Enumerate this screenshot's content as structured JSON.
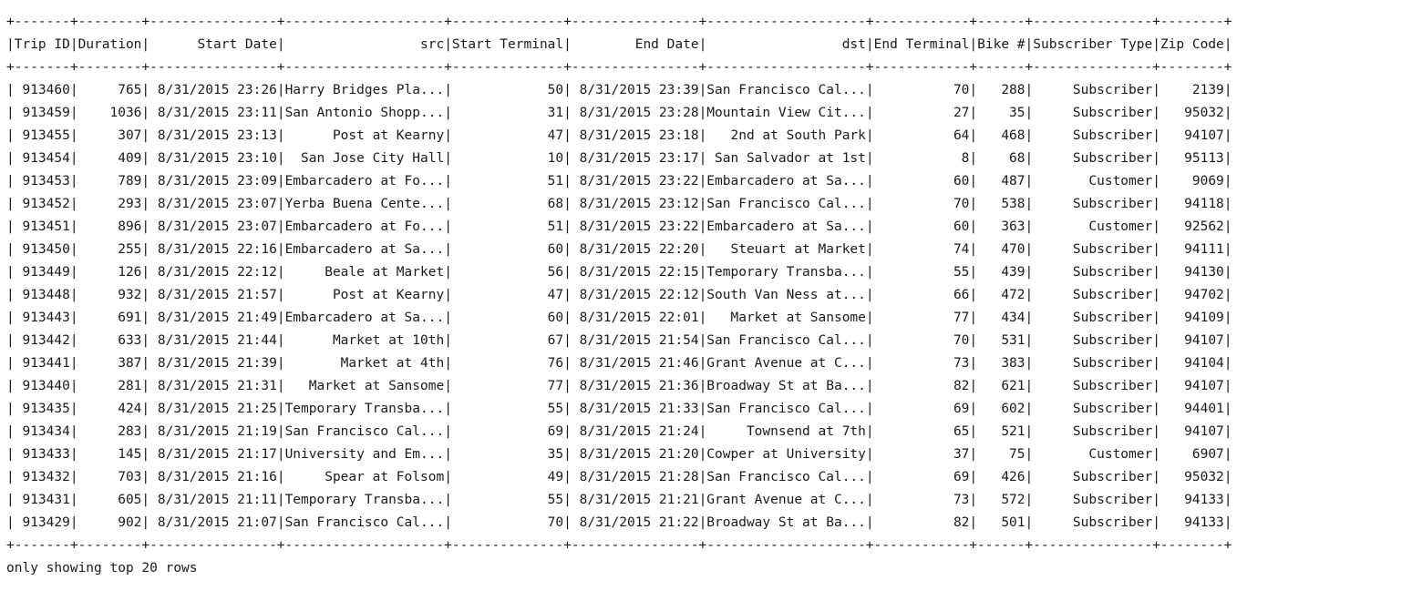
{
  "table": {
    "border": "+-------+--------+----------------+--------------------+--------------+----------------+--------------------+------------+------+---------------+--------+",
    "columns": [
      {
        "name": "Trip ID",
        "width": 7,
        "align": "right"
      },
      {
        "name": "Duration",
        "width": 8,
        "align": "right"
      },
      {
        "name": "Start Date",
        "width": 16,
        "align": "right"
      },
      {
        "name": "src",
        "width": 20,
        "align": "right"
      },
      {
        "name": "Start Terminal",
        "width": 14,
        "align": "right"
      },
      {
        "name": "End Date",
        "width": 16,
        "align": "right"
      },
      {
        "name": "dst",
        "width": 20,
        "align": "right"
      },
      {
        "name": "End Terminal",
        "width": 12,
        "align": "right"
      },
      {
        "name": "Bike #",
        "width": 6,
        "align": "right"
      },
      {
        "name": "Subscriber Type",
        "width": 15,
        "align": "right"
      },
      {
        "name": "Zip Code",
        "width": 8,
        "align": "right"
      }
    ],
    "rows": [
      [
        "913460",
        "765",
        "8/31/2015 23:26",
        "Harry Bridges Pla...",
        "50",
        "8/31/2015 23:39",
        "San Francisco Cal...",
        "70",
        "288",
        "Subscriber",
        "2139"
      ],
      [
        "913459",
        "1036",
        "8/31/2015 23:11",
        "San Antonio Shopp...",
        "31",
        "8/31/2015 23:28",
        "Mountain View Cit...",
        "27",
        "35",
        "Subscriber",
        "95032"
      ],
      [
        "913455",
        "307",
        "8/31/2015 23:13",
        "Post at Kearny",
        "47",
        "8/31/2015 23:18",
        "2nd at South Park",
        "64",
        "468",
        "Subscriber",
        "94107"
      ],
      [
        "913454",
        "409",
        "8/31/2015 23:10",
        "San Jose City Hall",
        "10",
        "8/31/2015 23:17",
        "San Salvador at 1st",
        "8",
        "68",
        "Subscriber",
        "95113"
      ],
      [
        "913453",
        "789",
        "8/31/2015 23:09",
        "Embarcadero at Fo...",
        "51",
        "8/31/2015 23:22",
        "Embarcadero at Sa...",
        "60",
        "487",
        "Customer",
        "9069"
      ],
      [
        "913452",
        "293",
        "8/31/2015 23:07",
        "Yerba Buena Cente...",
        "68",
        "8/31/2015 23:12",
        "San Francisco Cal...",
        "70",
        "538",
        "Subscriber",
        "94118"
      ],
      [
        "913451",
        "896",
        "8/31/2015 23:07",
        "Embarcadero at Fo...",
        "51",
        "8/31/2015 23:22",
        "Embarcadero at Sa...",
        "60",
        "363",
        "Customer",
        "92562"
      ],
      [
        "913450",
        "255",
        "8/31/2015 22:16",
        "Embarcadero at Sa...",
        "60",
        "8/31/2015 22:20",
        "Steuart at Market",
        "74",
        "470",
        "Subscriber",
        "94111"
      ],
      [
        "913449",
        "126",
        "8/31/2015 22:12",
        "Beale at Market",
        "56",
        "8/31/2015 22:15",
        "Temporary Transba...",
        "55",
        "439",
        "Subscriber",
        "94130"
      ],
      [
        "913448",
        "932",
        "8/31/2015 21:57",
        "Post at Kearny",
        "47",
        "8/31/2015 22:12",
        "South Van Ness at...",
        "66",
        "472",
        "Subscriber",
        "94702"
      ],
      [
        "913443",
        "691",
        "8/31/2015 21:49",
        "Embarcadero at Sa...",
        "60",
        "8/31/2015 22:01",
        "Market at Sansome",
        "77",
        "434",
        "Subscriber",
        "94109"
      ],
      [
        "913442",
        "633",
        "8/31/2015 21:44",
        "Market at 10th",
        "67",
        "8/31/2015 21:54",
        "San Francisco Cal...",
        "70",
        "531",
        "Subscriber",
        "94107"
      ],
      [
        "913441",
        "387",
        "8/31/2015 21:39",
        "Market at 4th",
        "76",
        "8/31/2015 21:46",
        "Grant Avenue at C...",
        "73",
        "383",
        "Subscriber",
        "94104"
      ],
      [
        "913440",
        "281",
        "8/31/2015 21:31",
        "Market at Sansome",
        "77",
        "8/31/2015 21:36",
        "Broadway St at Ba...",
        "82",
        "621",
        "Subscriber",
        "94107"
      ],
      [
        "913435",
        "424",
        "8/31/2015 21:25",
        "Temporary Transba...",
        "55",
        "8/31/2015 21:33",
        "San Francisco Cal...",
        "69",
        "602",
        "Subscriber",
        "94401"
      ],
      [
        "913434",
        "283",
        "8/31/2015 21:19",
        "San Francisco Cal...",
        "69",
        "8/31/2015 21:24",
        "Townsend at 7th",
        "65",
        "521",
        "Subscriber",
        "94107"
      ],
      [
        "913433",
        "145",
        "8/31/2015 21:17",
        "University and Em...",
        "35",
        "8/31/2015 21:20",
        "Cowper at University",
        "37",
        "75",
        "Customer",
        "6907"
      ],
      [
        "913432",
        "703",
        "8/31/2015 21:16",
        "Spear at Folsom",
        "49",
        "8/31/2015 21:28",
        "San Francisco Cal...",
        "69",
        "426",
        "Subscriber",
        "95032"
      ],
      [
        "913431",
        "605",
        "8/31/2015 21:11",
        "Temporary Transba...",
        "55",
        "8/31/2015 21:21",
        "Grant Avenue at C...",
        "73",
        "572",
        "Subscriber",
        "94133"
      ],
      [
        "913429",
        "902",
        "8/31/2015 21:07",
        "San Francisco Cal...",
        "70",
        "8/31/2015 21:22",
        "Broadway St at Ba...",
        "82",
        "501",
        "Subscriber",
        "94133"
      ]
    ]
  },
  "footer": "only showing top 20 rows"
}
